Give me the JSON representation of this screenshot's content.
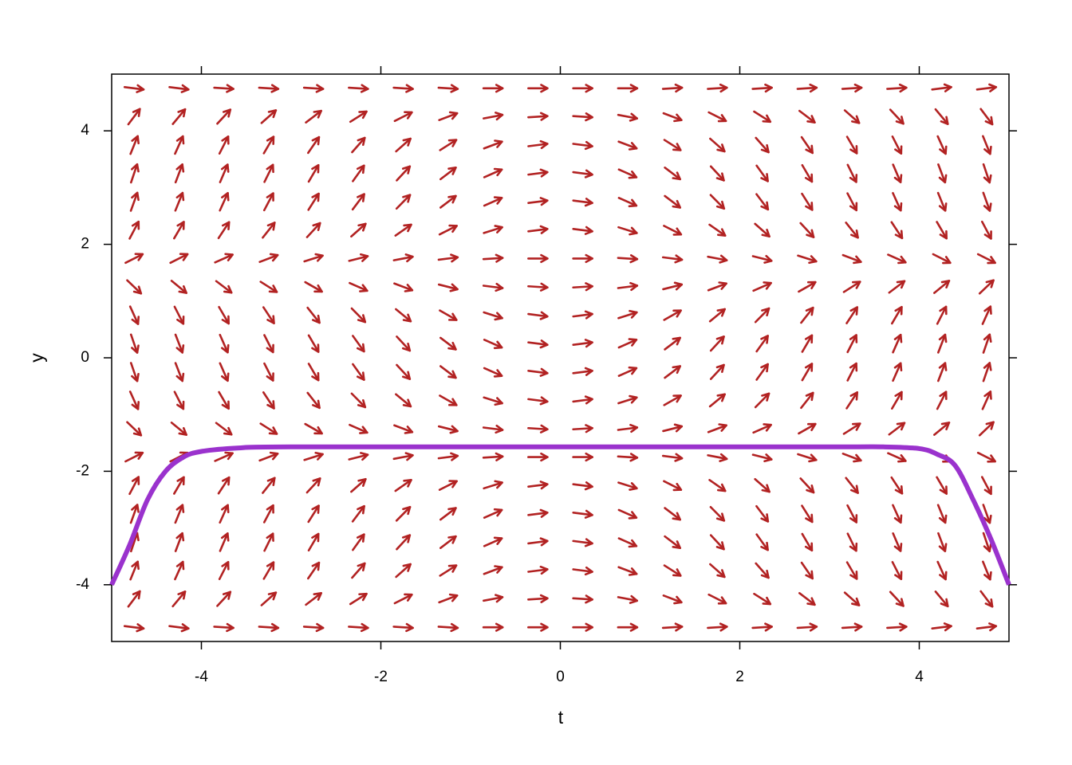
{
  "chart_data": {
    "type": "vector_field",
    "xlabel": "t",
    "ylabel": "y",
    "xlim": [
      -5,
      5
    ],
    "ylim": [
      -5,
      5
    ],
    "xticks": [
      -4,
      -2,
      0,
      2,
      4
    ],
    "yticks": [
      -4,
      -2,
      0,
      2,
      4
    ],
    "arrow_color": "#b22222",
    "t": [
      -4.75,
      -4.25,
      -3.75,
      -3.25,
      -2.75,
      -2.25,
      -1.75,
      -1.25,
      -0.75,
      -0.25,
      0.25,
      0.75,
      1.25,
      1.75,
      2.25,
      2.75,
      3.25,
      3.75,
      4.25,
      4.75
    ],
    "y": [
      -4.75,
      -4.25,
      -3.75,
      -3.25,
      -2.75,
      -2.25,
      -1.75,
      -1.25,
      -0.75,
      -0.25,
      0.25,
      0.75,
      1.25,
      1.75,
      2.25,
      2.75,
      3.25,
      3.75,
      4.25,
      4.75
    ],
    "slopes": [
      [
        -0.2,
        -0.2,
        -0.1,
        -0.1,
        -0.1,
        -0.1,
        -0.1,
        -0.1,
        0,
        0,
        0,
        0,
        0.1,
        0.1,
        0.1,
        0.1,
        0.1,
        0.1,
        0.2,
        0.2
      ],
      [
        2.1,
        1.9,
        1.7,
        1.4,
        1.2,
        1.0,
        0.8,
        0.6,
        0.3,
        0.1,
        -0.1,
        -0.3,
        -0.6,
        -0.8,
        -1.0,
        -1.2,
        -1.4,
        -1.7,
        -1.9,
        -2.1
      ],
      [
        3.9,
        3.5,
        3.1,
        2.7,
        2.3,
        1.8,
        1.4,
        1.0,
        0.6,
        0.2,
        -0.2,
        -0.6,
        -1.0,
        -1.4,
        -1.8,
        -2.3,
        -2.7,
        -3.1,
        -3.5,
        -3.9
      ],
      [
        4.7,
        4.2,
        3.7,
        3.2,
        2.7,
        2.2,
        1.7,
        1.2,
        0.7,
        0.2,
        -0.2,
        -0.7,
        -1.2,
        -1.7,
        -2.2,
        -2.7,
        -3.2,
        -3.7,
        -4.2,
        -4.7
      ],
      [
        4.4,
        3.9,
        3.5,
        3.0,
        2.5,
        2.1,
        1.6,
        1.2,
        0.7,
        0.2,
        -0.2,
        -0.7,
        -1.2,
        -1.6,
        -2.1,
        -2.5,
        -3.0,
        -3.5,
        -3.9,
        -4.4
      ],
      [
        3.0,
        2.7,
        2.4,
        2.0,
        1.7,
        1.4,
        1.1,
        0.8,
        0.5,
        0.2,
        -0.2,
        -0.5,
        -0.8,
        -1.1,
        -1.4,
        -1.7,
        -2.0,
        -2.4,
        -2.7,
        -3.0
      ],
      [
        0.8,
        0.8,
        0.7,
        0.6,
        0.5,
        0.4,
        0.3,
        0.2,
        0.1,
        0,
        0,
        -0.1,
        -0.2,
        -0.3,
        -0.4,
        -0.5,
        -0.6,
        -0.7,
        -0.8,
        -0.8
      ],
      [
        -1.5,
        -1.3,
        -1.2,
        -1.0,
        -0.9,
        -0.7,
        -0.6,
        -0.4,
        -0.2,
        -0.1,
        0.1,
        0.2,
        0.4,
        0.6,
        0.7,
        0.9,
        1.0,
        1.2,
        1.3,
        1.5
      ],
      [
        -3.5,
        -3.1,
        -2.7,
        -2.4,
        -2.0,
        -1.6,
        -1.3,
        -0.9,
        -0.5,
        -0.2,
        0.2,
        0.5,
        0.9,
        1.3,
        1.6,
        2.0,
        2.4,
        2.7,
        3.1,
        3.5
      ],
      [
        -4.6,
        -4.1,
        -3.6,
        -3.1,
        -2.7,
        -2.2,
        -1.7,
        -1.2,
        -0.7,
        -0.2,
        0.2,
        0.7,
        1.2,
        1.7,
        2.2,
        2.7,
        3.1,
        3.6,
        4.1,
        4.6
      ],
      [
        -4.6,
        -4.1,
        -3.6,
        -3.1,
        -2.7,
        -2.2,
        -1.7,
        -1.2,
        -0.7,
        -0.2,
        0.2,
        0.7,
        1.2,
        1.7,
        2.2,
        2.7,
        3.1,
        3.6,
        4.1,
        4.6
      ],
      [
        -3.5,
        -3.1,
        -2.7,
        -2.4,
        -2.0,
        -1.6,
        -1.3,
        -0.9,
        -0.5,
        -0.2,
        0.2,
        0.5,
        0.9,
        1.3,
        1.6,
        2.0,
        2.4,
        2.7,
        3.1,
        3.5
      ],
      [
        -1.5,
        -1.3,
        -1.2,
        -1.0,
        -0.9,
        -0.7,
        -0.6,
        -0.4,
        -0.2,
        -0.1,
        0.1,
        0.2,
        0.4,
        0.6,
        0.7,
        0.9,
        1.0,
        1.2,
        1.3,
        1.5
      ],
      [
        0.8,
        0.8,
        0.7,
        0.6,
        0.5,
        0.4,
        0.3,
        0.2,
        0.1,
        0,
        0,
        -0.1,
        -0.2,
        -0.3,
        -0.4,
        -0.5,
        -0.6,
        -0.7,
        -0.8,
        -0.8
      ],
      [
        3.0,
        2.7,
        2.4,
        2.0,
        1.7,
        1.4,
        1.1,
        0.8,
        0.5,
        0.2,
        -0.2,
        -0.5,
        -0.8,
        -1.1,
        -1.4,
        -1.7,
        -2.0,
        -2.4,
        -2.7,
        -3.0
      ],
      [
        4.4,
        3.9,
        3.5,
        3.0,
        2.5,
        2.1,
        1.6,
        1.2,
        0.7,
        0.2,
        -0.2,
        -0.7,
        -1.2,
        -1.6,
        -2.1,
        -2.5,
        -3.0,
        -3.5,
        -3.9,
        -4.4
      ],
      [
        4.7,
        4.2,
        3.7,
        3.2,
        2.7,
        2.2,
        1.7,
        1.2,
        0.7,
        0.2,
        -0.2,
        -0.7,
        -1.2,
        -1.7,
        -2.2,
        -2.7,
        -3.2,
        -3.7,
        -4.2,
        -4.7
      ],
      [
        3.9,
        3.5,
        3.1,
        2.7,
        2.3,
        1.8,
        1.4,
        1.0,
        0.6,
        0.2,
        -0.2,
        -0.6,
        -1.0,
        -1.4,
        -1.8,
        -2.3,
        -2.7,
        -3.1,
        -3.5,
        -3.9
      ],
      [
        2.1,
        1.9,
        1.7,
        1.4,
        1.2,
        1.0,
        0.8,
        0.6,
        0.3,
        0.1,
        -0.1,
        -0.3,
        -0.6,
        -0.8,
        -1.0,
        -1.2,
        -1.4,
        -1.7,
        -1.9,
        -2.1
      ],
      [
        -0.2,
        -0.2,
        -0.1,
        -0.1,
        -0.1,
        -0.1,
        -0.1,
        -0.1,
        0,
        0,
        0,
        0,
        0.1,
        0.1,
        0.1,
        0.1,
        0.1,
        0.1,
        0.2,
        0.2
      ]
    ],
    "curve": {
      "color": "#9a32cd",
      "x": [
        -5,
        -4.8,
        -4.6,
        -4.4,
        -4.2,
        -4,
        -3.6,
        -3,
        0,
        3,
        3.6,
        4,
        4.2,
        4.4,
        4.6,
        4.8,
        5
      ],
      "values": [
        -4,
        -3.3,
        -2.5,
        -2.0,
        -1.75,
        -1.65,
        -1.59,
        -1.57,
        -1.57,
        -1.57,
        -1.57,
        -1.6,
        -1.7,
        -1.9,
        -2.5,
        -3.2,
        -4
      ]
    }
  }
}
